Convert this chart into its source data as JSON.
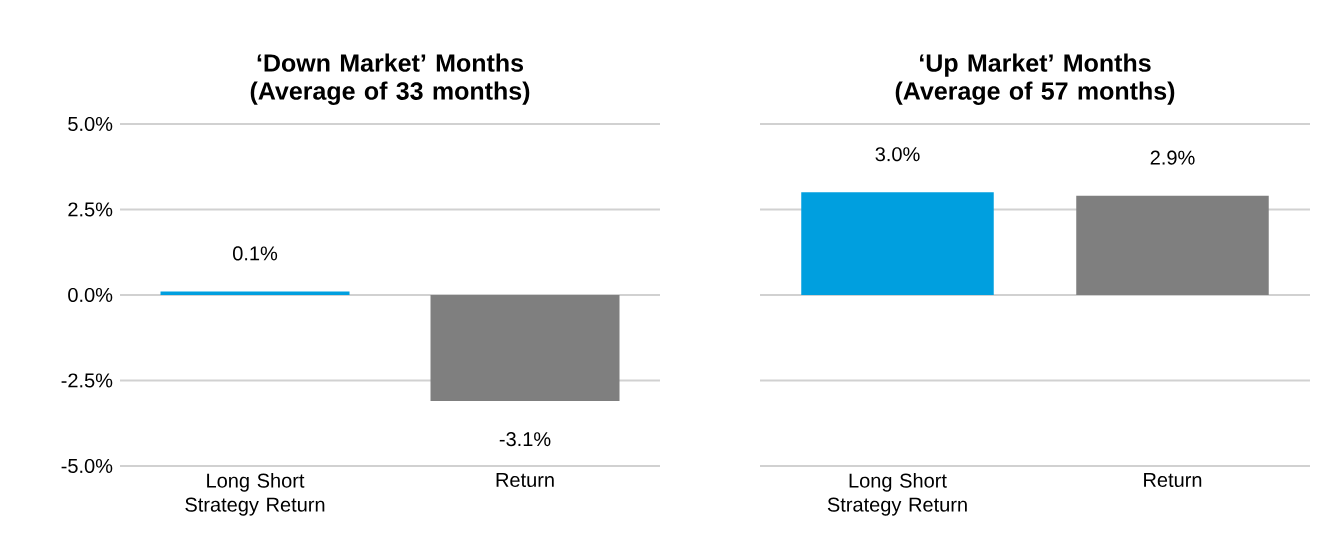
{
  "chart_data": [
    {
      "type": "bar",
      "title": "‘Down Market’ Months (Average of 33 months)",
      "categories": [
        "Long Short Strategy Return",
        "Return"
      ],
      "values": [
        0.1,
        -3.1
      ],
      "colors": [
        "#009fdf",
        "#7f7f7f"
      ],
      "value_labels": [
        "0.1%",
        "-3.1%"
      ],
      "ylim": [
        -5,
        5
      ],
      "yticks": [
        {
          "value": -5,
          "label": "-5.0%"
        },
        {
          "value": -2.5,
          "label": "-2.5%"
        },
        {
          "value": 0,
          "label": "0.0%"
        },
        {
          "value": 2.5,
          "label": "2.5%"
        },
        {
          "value": 5,
          "label": "5.0%"
        }
      ],
      "grid": "y"
    },
    {
      "type": "bar",
      "title": "‘Up Market’ Months (Average of 57 months)",
      "categories": [
        "Long Short Strategy Return",
        "Return"
      ],
      "values": [
        3.0,
        2.9
      ],
      "colors": [
        "#009fdf",
        "#7f7f7f"
      ],
      "value_labels": [
        "3.0%",
        "2.9%"
      ],
      "ylim": [
        -5,
        5
      ],
      "yticks": [
        -5,
        -2.5,
        0,
        2.5,
        5
      ],
      "grid": "y",
      "tick_labels": "x"
    }
  ]
}
